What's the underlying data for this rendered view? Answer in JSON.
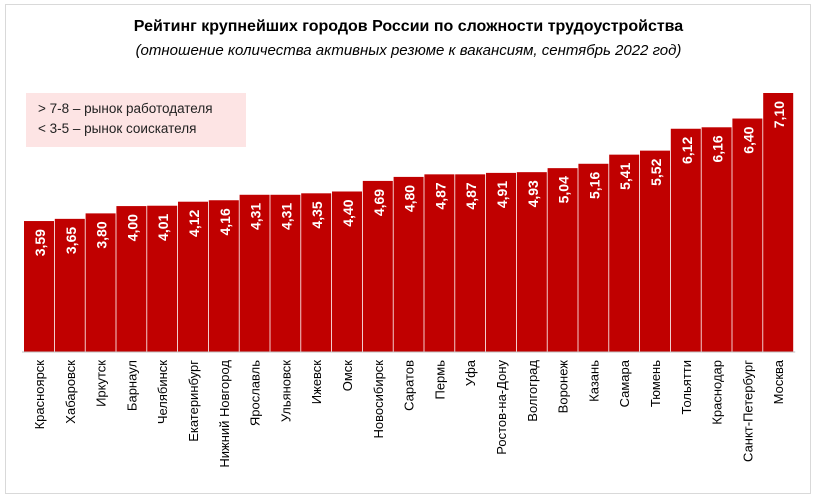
{
  "chart_data": {
    "type": "bar",
    "title": "Рейтинг крупнейших городов России по сложности трудоустройства",
    "subtitle": "(отношение количества активных резюме к вакансиям, сентябрь 2022 год)",
    "annotations": [
      "> 7-8 – рынок работодателя",
      "< 3-5 – рынок соискателя"
    ],
    "categories": [
      "Красноярск",
      "Хабаровск",
      "Иркутск",
      "Барнаул",
      "Челябинск",
      "Екатеринбург",
      "Нижний Новгород",
      "Ярославль",
      "Ульяновск",
      "Ижевск",
      "Омск",
      "Новосибирск",
      "Саратов",
      "Пермь",
      "Уфа",
      "Ростов-на-Дону",
      "Волгоград",
      "Воронеж",
      "Казань",
      "Самара",
      "Тюмень",
      "Тольятти",
      "Краснодар",
      "Санкт-Петербург",
      "Москва"
    ],
    "values": [
      3.59,
      3.65,
      3.8,
      4.0,
      4.01,
      4.12,
      4.16,
      4.31,
      4.31,
      4.35,
      4.4,
      4.69,
      4.8,
      4.87,
      4.87,
      4.91,
      4.93,
      5.04,
      5.16,
      5.41,
      5.52,
      6.12,
      6.16,
      6.4,
      7.1
    ],
    "data_labels": [
      "3,59",
      "3,65",
      "3,80",
      "4,00",
      "4,01",
      "4,12",
      "4,16",
      "4,31",
      "4,31",
      "4,35",
      "4,40",
      "4,69",
      "4,80",
      "4,87",
      "4,87",
      "4,91",
      "4,93",
      "5,04",
      "5,16",
      "5,41",
      "5,52",
      "6,12",
      "6,16",
      "6,40",
      "7,10"
    ],
    "ylim": [
      0,
      7.1
    ],
    "grid": false,
    "bar_color": "#c00000",
    "annotation_bg": "#fde4e4"
  }
}
